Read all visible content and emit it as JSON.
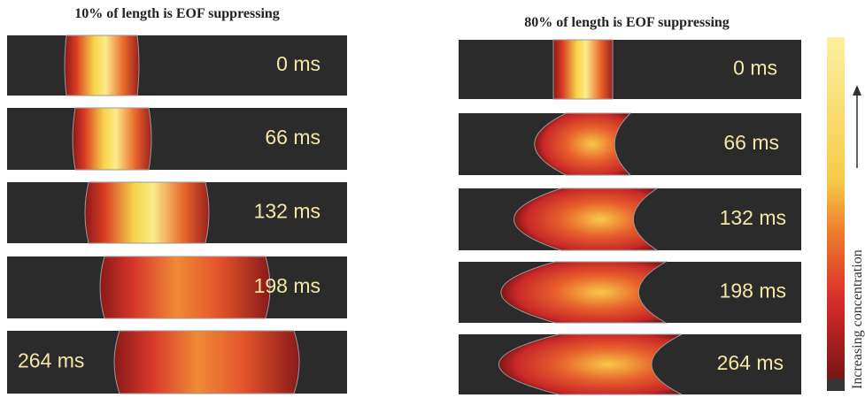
{
  "panels": [
    {
      "title": "10% of length is EOF suppressing",
      "frames": [
        "0 ms",
        "66 ms",
        "132 ms",
        "198 ms",
        "264 ms"
      ]
    },
    {
      "title": "80% of length is EOF suppressing",
      "frames": [
        "0 ms",
        "66 ms",
        "132 ms",
        "198 ms",
        "264 ms"
      ]
    }
  ],
  "colorbar": {
    "label": "Increasing concentration"
  }
}
